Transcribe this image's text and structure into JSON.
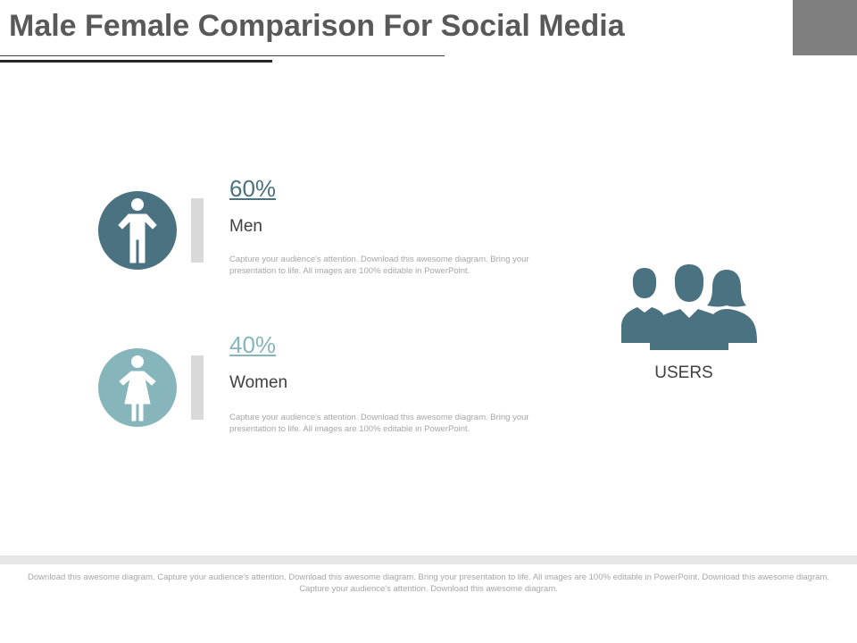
{
  "header": {
    "title": "Male Female Comparison For Social Media"
  },
  "colors": {
    "men": "#4a7280",
    "women": "#86b5bb",
    "users": "#4a7280",
    "bar": "#d9d9d9"
  },
  "segments": [
    {
      "percent": "60%",
      "label": "Men",
      "icon": "male-person-icon",
      "description": "Capture your audience's attention. Download this  awesome diagram. Bring your presentation to life. All images are 100% editable in PowerPoint."
    },
    {
      "percent": "40%",
      "label": "Women",
      "icon": "female-person-icon",
      "description": "Capture your audience's attention. Download this  awesome diagram. Bring your presentation to life. All images are 100% editable in PowerPoint."
    }
  ],
  "users": {
    "label": "USERS",
    "icon": "users-group-icon"
  },
  "footer": {
    "text": "Download this awesome diagram. Capture your audience's attention. Download this  awesome diagram. Bring your presentation to life. All images are 100% editable in PowerPoint. Download this awesome diagram. Capture your audience's attention. Download this  awesome diagram."
  }
}
